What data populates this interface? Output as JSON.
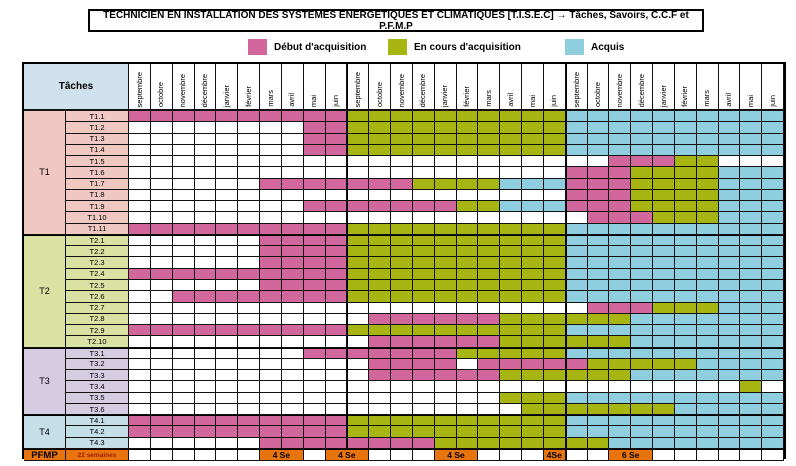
{
  "title": "TECHNICIEN EN INSTALLATION DES SYSTEMES ENERGETIQUES ET CLIMATIQUES [T.I.S.E.C] → Tâches, Savoirs, C.C.F et P.F.M.P",
  "legend": {
    "items": [
      {
        "key": "P",
        "label": "Début d'acquisition",
        "color": "#d2679e"
      },
      {
        "key": "G",
        "label": "En cours d'acquisition",
        "color": "#a7b513"
      },
      {
        "key": "B",
        "label": "Acquis",
        "color": "#8ecedf"
      }
    ]
  },
  "cell_colors": {
    "P": "#d2679e",
    "G": "#a7b513",
    "B": "#8ecedf",
    "O": "#e8740e",
    "W": "#ffffff"
  },
  "table": {
    "corner_label": "Tâches",
    "corner_bg": "#cfe1ed",
    "month_columns": [
      "septembre",
      "octobre",
      "novembre",
      "décembre",
      "janvier",
      "février",
      "mars",
      "avril",
      "mai",
      "juin",
      "septembre",
      "octobre",
      "novembre",
      "décembre",
      "janvier",
      "février",
      "mars",
      "avril",
      "mai",
      "juin",
      "septembre",
      "octobre",
      "novembre",
      "décembre",
      "janvier",
      "février",
      "mars",
      "avril",
      "mai",
      "juin"
    ],
    "groups": [
      {
        "label": "T1",
        "rows": 11,
        "bg": "#f0c8c2"
      },
      {
        "label": "T2",
        "rows": 10,
        "bg": "#d9e1a3"
      },
      {
        "label": "T3",
        "rows": 6,
        "bg": "#d5cce1"
      },
      {
        "label": "T4",
        "rows": 3,
        "bg": "#c5dfe8"
      }
    ],
    "tasks": [
      {
        "label": "T1.1",
        "cells": "PPPPPPPPPPGGGGGGGGGGBBBBBBBBBB"
      },
      {
        "label": "T1.2",
        "cells": "WWWWWWWWPPGGGGGGGGGGBBBBBBBBBB"
      },
      {
        "label": "T1.3",
        "cells": "WWWWWWWWPPGGGGGGGGGGBBBBBBBBBB"
      },
      {
        "label": "T1.4",
        "cells": "WWWWWWWWPPGGGGGGGGGGBBBBBBBBBB"
      },
      {
        "label": "T1.5",
        "cells": "WWWWWWWWWWWWWWWWWWWWWWPPPGGWWW"
      },
      {
        "label": "T1.6",
        "cells": "WWWWWWWWWWWWWWWWWWWWPPPGGGGBBB"
      },
      {
        "label": "T1.7",
        "cells": "WWWWWWPPPPPPPGGGGBBBPPPGGGGBBB"
      },
      {
        "label": "T1.8",
        "cells": "WWWWWWWWWWWWWWWWWWWWPPPGGGGBBB"
      },
      {
        "label": "T1.9",
        "cells": "WWWWWWWWPPPPPPPGGBBBPPPGGGGBBB"
      },
      {
        "label": "T1.10",
        "cells": "WWWWWWWWWWWWWWWWWWWWWPPPGGGBBB"
      },
      {
        "label": "T1.11",
        "cells": "PPPPPPPPPPGGGGGGGGGGBBBBBBBBBB"
      },
      {
        "label": "T2.1",
        "cells": "WWWWWWPPPPGGGGGGGGGGBBBBBBBBBB"
      },
      {
        "label": "T2.2",
        "cells": "WWWWWWPPPPGGGGGGGGGGBBBBBBBBBB"
      },
      {
        "label": "T2.3",
        "cells": "WWWWWWPPPPGGGGGGGGGGBBBBBBBBBB"
      },
      {
        "label": "T2.4",
        "cells": "PPPPPPPPPPGGGGGGGGGGBBBBBBBBBB"
      },
      {
        "label": "T2.5",
        "cells": "WWWWWWPPPPGGGGGGGGGGBBBBBBBBBB"
      },
      {
        "label": "T2.6",
        "cells": "WWPPPPPPPPGGGGGGGGGGBBBBBBBBBB"
      },
      {
        "label": "T2.7",
        "cells": "WWWWWWWWWWWWWWWWWWWWWPPPGGGBBB"
      },
      {
        "label": "T2.8",
        "cells": "WWWWWWWWWWWPPPPPPGGGGGGBBBBBBB"
      },
      {
        "label": "T2.9",
        "cells": "PPPPPPPPPPGGGGGGGGGGBBBBBBBBBB"
      },
      {
        "label": "T2.10",
        "cells": "WWWWWWWWWWWPPPPPPGGGGGGBBBBBBB"
      },
      {
        "label": "T3.1",
        "cells": "WWWWWWWWPPPPPPPGGGGGBBBBBBBBBB"
      },
      {
        "label": "T3.2",
        "cells": "WWWWWWWWWWWPPPPWPPPPPGGGGGBBBB"
      },
      {
        "label": "T3.3",
        "cells": "WWWWWWWWWWWPPPPPPGGGGGGBBBBBBB"
      },
      {
        "label": "T3.4",
        "cells": "WWWWWWWWWWWWWWWWWWWWWWWWWWWWGW"
      },
      {
        "label": "T3.5",
        "cells": "WWWWWWWWWWWWWWWWWGGGBBBBBBBBBB"
      },
      {
        "label": "T3.6",
        "cells": "WWWWWWWWWWWWWWWWWWGGGGGGGBBBBB"
      },
      {
        "label": "T4.1",
        "cells": "PPPPPPPPPPGGGGGGGGGGBBBBBBBBBB"
      },
      {
        "label": "T4.2",
        "cells": "PPPPPPPPPPGGGGGGGGGGBBBBBBBBBB"
      },
      {
        "label": "T4.3",
        "cells": "WWWWWWPPPPPPPPGGGGGGGGBBBBBBBB"
      }
    ],
    "pfmp": {
      "label": "PFMP",
      "sublabel": "22 semaines",
      "bg": "#e8740e",
      "sublabel_color": "#9e1b00",
      "cells": "WWWWWWOOWOOWWWOOWWWOWWOOWWWWWW",
      "block_labels": [
        "4 Se",
        "4 Se",
        "4 Se",
        "4Se",
        "6 Se"
      ]
    }
  }
}
